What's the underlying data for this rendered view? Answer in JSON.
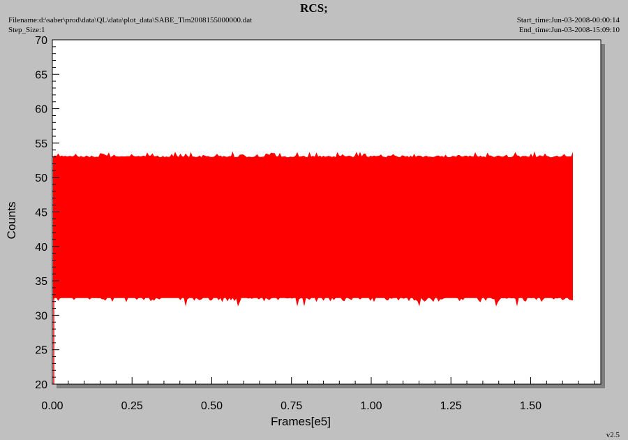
{
  "header": {
    "title": "RCS;",
    "filename": "Filename:d:\\saber\\prod\\data\\QL\\data\\plot_data\\SABE_Tlm2008155000000.dat",
    "step_size": "Step_Size:1",
    "start_time": "Start_time:Jun-03-2008-00:00:14",
    "end_time": "End_time:Jun-03-2008-15:09:10"
  },
  "footer": {
    "version": "v2.5"
  },
  "colors": {
    "background": "#c0c0c0",
    "plot_area": "#ffffff",
    "series": "#ff0000",
    "shadow": "#808080"
  },
  "chart_data": {
    "type": "area",
    "title": "RCS;",
    "xlabel": "Frames[e5]",
    "ylabel": "Counts",
    "xlim": [
      0.0,
      1.72
    ],
    "ylim": [
      20,
      70
    ],
    "x_ticks": [
      "0.00",
      "0.25",
      "0.50",
      "0.75",
      "1.00",
      "1.25",
      "1.50"
    ],
    "y_ticks": [
      "20",
      "25",
      "30",
      "35",
      "40",
      "45",
      "50",
      "55",
      "60",
      "65",
      "70"
    ],
    "grid": false,
    "legend": "none",
    "series": [
      {
        "x_range": [
          0.0,
          1.635
        ],
        "band_upper_typical": 53.2,
        "band_upper_max": 53.8,
        "band_lower_typical": 32.5,
        "band_lower_min": 31.3,
        "initial_min_value": 20
      }
    ]
  }
}
